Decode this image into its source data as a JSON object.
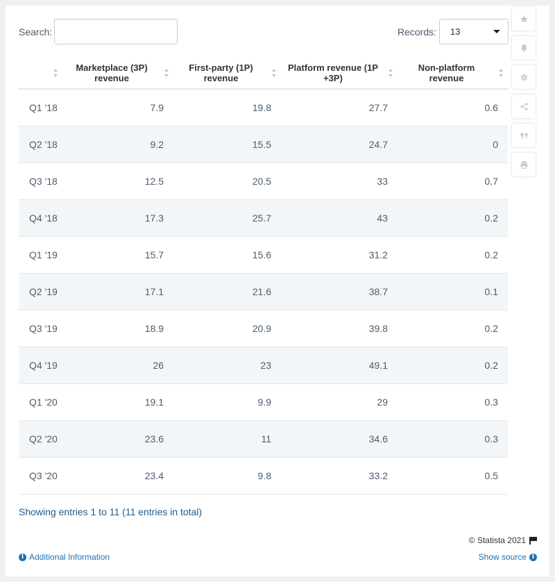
{
  "search": {
    "label": "Search:",
    "value": ""
  },
  "records": {
    "label": "Records:",
    "selected": "13"
  },
  "toolbar": {
    "icons": [
      "star-icon",
      "bell-icon",
      "gear-icon",
      "share-icon",
      "quote-icon",
      "print-icon"
    ]
  },
  "chart_data": {
    "type": "table",
    "columns": [
      "",
      "Marketplace (3P) revenue",
      "First-party (1P) revenue",
      "Platform revenue (1P +3P)",
      "Non-platform revenue"
    ],
    "rows": [
      [
        "Q1 '18",
        "7.9",
        "19.8",
        "27.7",
        "0.6"
      ],
      [
        "Q2 '18",
        "9.2",
        "15.5",
        "24.7",
        "0"
      ],
      [
        "Q3 '18",
        "12.5",
        "20.5",
        "33",
        "0.7"
      ],
      [
        "Q4 '18",
        "17.3",
        "25.7",
        "43",
        "0.2"
      ],
      [
        "Q1 '19",
        "15.7",
        "15.6",
        "31.2",
        "0.2"
      ],
      [
        "Q2 '19",
        "17.1",
        "21.6",
        "38.7",
        "0.1"
      ],
      [
        "Q3 '19",
        "18.9",
        "20.9",
        "39.8",
        "0.2"
      ],
      [
        "Q4 '19",
        "26",
        "23",
        "49.1",
        "0.2"
      ],
      [
        "Q1 '20",
        "19.1",
        "9.9",
        "29",
        "0.3"
      ],
      [
        "Q2 '20",
        "23.6",
        "11",
        "34.6",
        "0.3"
      ],
      [
        "Q3 '20",
        "23.4",
        "9.8",
        "33.2",
        "0.5"
      ]
    ]
  },
  "footer": {
    "showing": "Showing entries 1 to 11 (11 entries in total)",
    "copyright": "© Statista 2021",
    "additional_info": "Additional Information",
    "show_source": "Show source"
  }
}
